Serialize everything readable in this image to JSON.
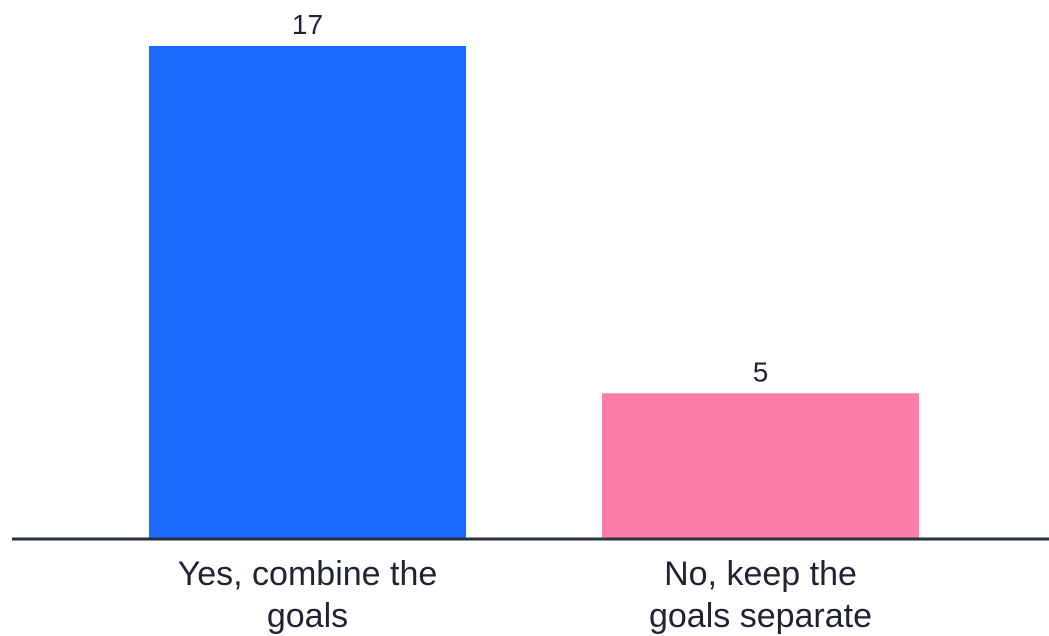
{
  "chart_data": {
    "type": "bar",
    "categories": [
      [
        "Yes, combine the",
        "goals"
      ],
      [
        "No, keep the",
        "goals separate"
      ]
    ],
    "values": [
      17,
      5
    ],
    "colors": [
      "#1a6afe",
      "#fd7fa8"
    ],
    "axis_color": "#2b2f42",
    "ylim": [
      0,
      17
    ],
    "grid": false,
    "legend": "none"
  }
}
